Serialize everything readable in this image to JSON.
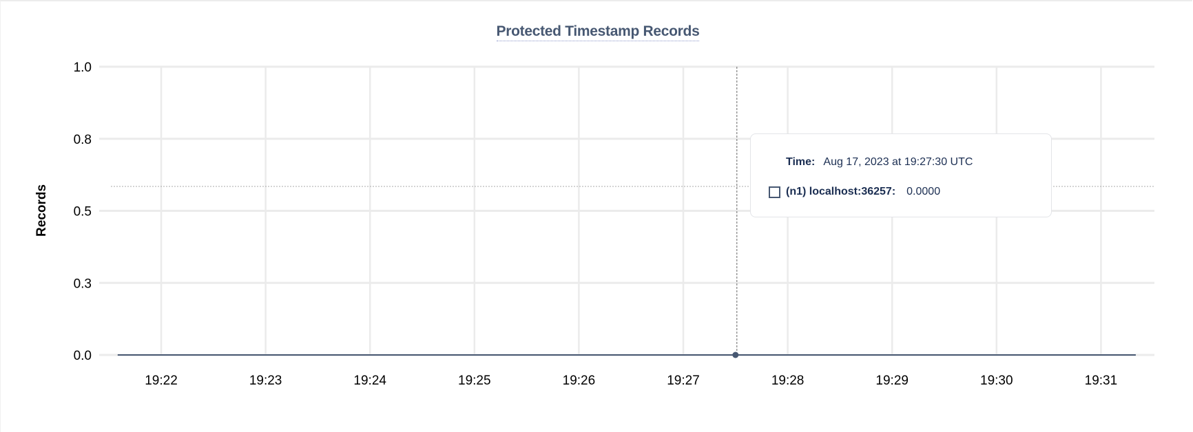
{
  "chart_data": {
    "type": "line",
    "title": "Protected Timestamp Records",
    "xlabel": "",
    "ylabel": "Records",
    "x_ticks": [
      "19:22",
      "19:23",
      "19:24",
      "19:25",
      "19:26",
      "19:27",
      "19:28",
      "19:29",
      "19:30",
      "19:31"
    ],
    "y_ticks": [
      "1.0",
      "0.8",
      "0.5",
      "0.3",
      "0.0"
    ],
    "y_tick_values": [
      1.0,
      0.75,
      0.5,
      0.25,
      0.0
    ],
    "ylim": [
      0,
      1
    ],
    "xlim": [
      "19:21:31",
      "19:31:20"
    ],
    "grid": true,
    "series": [
      {
        "name": "(n1) localhost:36257",
        "color": "#475872",
        "x": [
          "19:21:35",
          "19:31:20"
        ],
        "y": [
          0,
          0
        ]
      }
    ],
    "hover": {
      "time": "19:27:30",
      "value": 0
    }
  },
  "tooltip": {
    "time_label": "Time:",
    "time_value": "Aug 17, 2023 at 19:27:30 UTC",
    "series_label": "(n1) localhost:36257:",
    "series_value": "0.0000",
    "swatch_color": "#475872"
  }
}
